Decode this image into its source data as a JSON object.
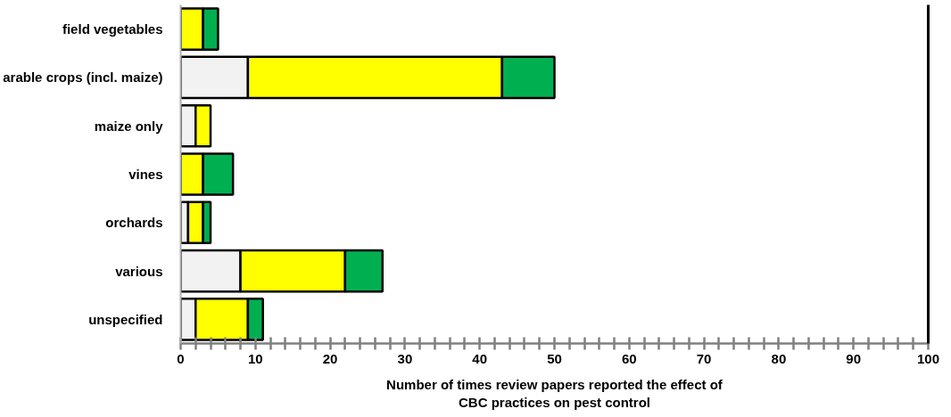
{
  "chart_data": {
    "type": "bar",
    "orientation": "horizontal",
    "stacked": true,
    "categories": [
      "field vegetables",
      "arable crops (incl. maize)",
      "maize only",
      "vines",
      "orchards",
      "various",
      "unspecified"
    ],
    "series": [
      {
        "color": "#f2f2f2",
        "values": [
          null,
          9,
          2,
          null,
          1,
          8,
          2
        ]
      },
      {
        "color": "#ffff00",
        "values": [
          3,
          34,
          2,
          3,
          2,
          14,
          7
        ]
      },
      {
        "color": "#00b050",
        "values": [
          2,
          7,
          null,
          4,
          1,
          5,
          2
        ]
      }
    ],
    "xlim": [
      0,
      100
    ],
    "xticks": [
      0,
      {
        "value": 2,
        "label": null
      },
      {
        "value": 4,
        "label": null
      },
      {
        "value": 6,
        "label": null
      },
      {
        "value": 8,
        "label": null
      },
      10,
      {
        "value": 12,
        "label": null
      },
      {
        "value": 14,
        "label": null
      },
      {
        "value": 16,
        "label": null
      },
      {
        "value": 18,
        "label": null
      },
      20,
      {
        "value": 22,
        "label": null
      },
      {
        "value": 24,
        "label": null
      },
      {
        "value": 26,
        "label": null
      },
      {
        "value": 28,
        "label": null
      },
      30,
      {
        "value": 32,
        "label": null
      },
      {
        "value": 34,
        "label": null
      },
      {
        "value": 36,
        "label": null
      },
      {
        "value": 38,
        "label": null
      },
      40,
      {
        "value": 42,
        "label": null
      },
      {
        "value": 44,
        "label": null
      },
      {
        "value": 46,
        "label": null
      },
      {
        "value": 48,
        "label": null
      },
      50,
      {
        "value": 52,
        "label": null
      },
      {
        "value": 54,
        "label": null
      },
      {
        "value": 56,
        "label": null
      },
      {
        "value": 58,
        "label": null
      },
      60,
      {
        "value": 62,
        "label": null
      },
      {
        "value": 64,
        "label": null
      },
      {
        "value": 66,
        "label": null
      },
      {
        "value": 68,
        "label": null
      },
      70,
      {
        "value": 72,
        "label": null
      },
      {
        "value": 74,
        "label": null
      },
      {
        "value": 76,
        "label": null
      },
      {
        "value": 78,
        "label": null
      },
      80,
      {
        "value": 82,
        "label": null
      },
      {
        "value": 84,
        "label": null
      },
      {
        "value": 86,
        "label": null
      },
      {
        "value": 88,
        "label": null
      },
      90,
      {
        "value": 92,
        "label": null
      },
      {
        "value": 94,
        "label": null
      },
      {
        "value": 96,
        "label": null
      },
      {
        "value": 98,
        "label": null
      },
      100
    ],
    "xlabel": "Number of times review papers reported the effect of\nCBC practices on pest control",
    "grid": false
  }
}
